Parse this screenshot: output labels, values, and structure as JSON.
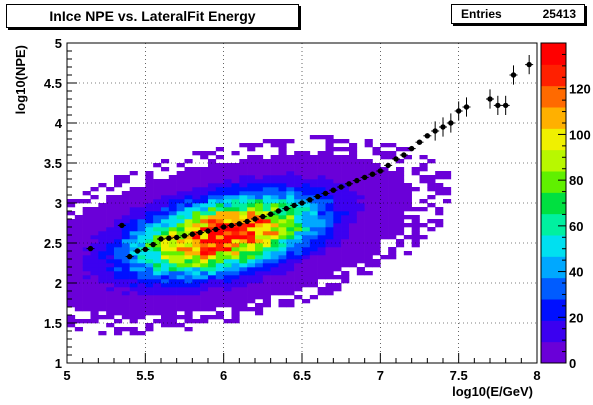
{
  "header": {
    "title": "InIce NPE vs. LateralFit Energy",
    "stats_entries_label": "Entries",
    "stats_entries_value": "25413"
  },
  "chart_data": {
    "type": "heatmap",
    "title": "InIce NPE vs. LateralFit Energy",
    "xlabel": "log10(E/GeV)",
    "ylabel": "log10(NPE)",
    "xlim": [
      5,
      8
    ],
    "ylim": [
      1,
      5
    ],
    "x_ticks": [
      "5",
      "5.5",
      "6",
      "6.5",
      "7",
      "7.5",
      "8"
    ],
    "y_ticks": [
      "1",
      "1.5",
      "2",
      "2.5",
      "3",
      "3.5",
      "4",
      "4.5",
      "5"
    ],
    "grid": true,
    "colorbar": {
      "range": [
        0,
        140
      ],
      "ticks": [
        "0",
        "20",
        "40",
        "60",
        "80",
        "100",
        "120"
      ],
      "colors": [
        "#6a00d8",
        "#3b00f0",
        "#0010ff",
        "#005cff",
        "#00a8ff",
        "#00e0f0",
        "#00f0a0",
        "#00e040",
        "#60f000",
        "#b8f800",
        "#f0f000",
        "#ffb000",
        "#ff6a00",
        "#ff2000",
        "#ff0000"
      ]
    },
    "histogram": {
      "center_log10_e": 6.0,
      "center_log10_npe": 2.6,
      "peak_count": 135,
      "entries": 25413
    },
    "profile": {
      "name": "profile",
      "x": [
        5.15,
        5.35,
        5.4,
        5.45,
        5.5,
        5.55,
        5.6,
        5.65,
        5.7,
        5.75,
        5.8,
        5.85,
        5.9,
        5.95,
        6.0,
        6.05,
        6.1,
        6.15,
        6.2,
        6.25,
        6.3,
        6.35,
        6.4,
        6.45,
        6.5,
        6.55,
        6.6,
        6.65,
        6.7,
        6.75,
        6.8,
        6.85,
        6.9,
        6.95,
        7.0,
        7.05,
        7.1,
        7.15,
        7.2,
        7.25,
        7.3,
        7.35,
        7.4,
        7.45,
        7.5,
        7.55,
        7.7,
        7.75,
        7.8,
        7.85,
        7.95
      ],
      "y": [
        2.43,
        2.72,
        2.33,
        2.4,
        2.42,
        2.48,
        2.55,
        2.56,
        2.57,
        2.59,
        2.61,
        2.63,
        2.65,
        2.67,
        2.7,
        2.72,
        2.74,
        2.77,
        2.8,
        2.83,
        2.86,
        2.9,
        2.93,
        2.97,
        3.0,
        3.04,
        3.08,
        3.12,
        3.16,
        3.2,
        3.24,
        3.28,
        3.32,
        3.36,
        3.4,
        3.47,
        3.55,
        3.6,
        3.68,
        3.76,
        3.84,
        3.9,
        3.95,
        4.0,
        4.15,
        4.2,
        4.3,
        4.22,
        4.22,
        4.6,
        4.73
      ]
    }
  }
}
